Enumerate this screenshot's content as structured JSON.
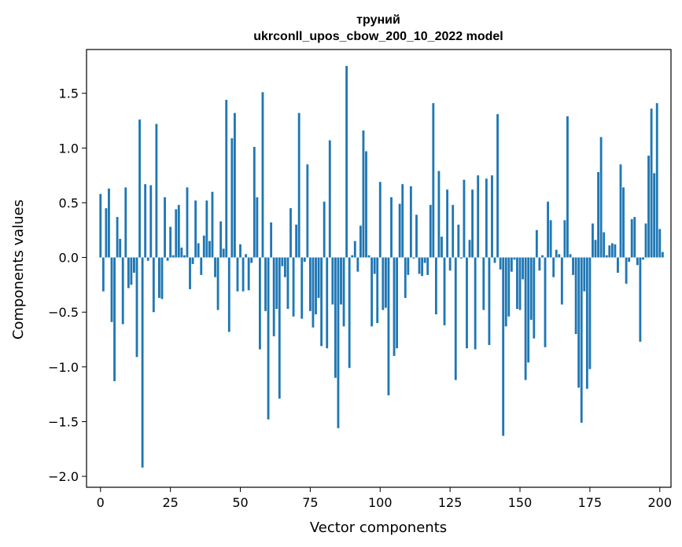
{
  "chart_data": {
    "type": "bar",
    "title_lines": [
      "труний",
      "ukrconll_upos_cbow_200_10_2022 model"
    ],
    "xlabel": "Vector components",
    "ylabel": "Components values",
    "xlim": [
      -5,
      204
    ],
    "ylim": [
      -2.1,
      1.9
    ],
    "xticks": [
      0,
      25,
      50,
      75,
      100,
      125,
      150,
      175,
      200
    ],
    "yticks": [
      -2.0,
      -1.5,
      -1.0,
      -0.5,
      0.0,
      0.5,
      1.0,
      1.5
    ],
    "ytick_labels": [
      "−2.0",
      "−1.5",
      "−1.0",
      "−0.5",
      "0.0",
      "0.5",
      "1.0",
      "1.5"
    ],
    "grid": false,
    "bar_color": "#1f77b4",
    "values": [
      0.58,
      -0.31,
      0.45,
      0.63,
      -0.59,
      -1.13,
      0.37,
      0.17,
      -0.61,
      0.64,
      -0.28,
      -0.25,
      -0.14,
      -0.91,
      1.26,
      -1.92,
      0.67,
      -0.03,
      0.66,
      -0.5,
      1.22,
      -0.37,
      -0.38,
      0.55,
      -0.03,
      0.28,
      0.02,
      0.44,
      0.48,
      0.09,
      0.02,
      0.64,
      -0.29,
      -0.06,
      0.52,
      0.13,
      -0.16,
      0.2,
      0.52,
      0.15,
      0.6,
      -0.18,
      -0.48,
      0.33,
      0.08,
      1.44,
      -0.68,
      1.09,
      1.32,
      -0.31,
      0.12,
      -0.31,
      0.03,
      -0.3,
      -0.05,
      1.01,
      0.55,
      -0.84,
      1.51,
      -0.49,
      -1.48,
      0.32,
      -0.72,
      -0.47,
      -1.29,
      -0.08,
      -0.18,
      -0.47,
      0.45,
      -0.54,
      0.3,
      1.32,
      -0.56,
      -0.04,
      0.85,
      -0.49,
      -0.64,
      -0.52,
      -0.37,
      -0.81,
      0.51,
      -0.83,
      1.07,
      -0.43,
      -1.1,
      -1.56,
      -0.43,
      -0.63,
      1.75,
      -1.01,
      0.02,
      0.15,
      -0.13,
      0.29,
      1.16,
      0.97,
      0.02,
      -0.63,
      -0.15,
      -0.6,
      0.69,
      -0.48,
      -0.46,
      -1.26,
      0.55,
      -0.9,
      -0.83,
      0.49,
      0.67,
      -0.37,
      -0.16,
      0.65,
      -0.01,
      0.39,
      -0.15,
      -0.17,
      -0.05,
      -0.16,
      0.48,
      1.41,
      -0.52,
      0.79,
      0.19,
      -0.62,
      0.62,
      -0.12,
      0.48,
      -1.12,
      0.3,
      -0.01,
      0.71,
      -0.83,
      0.16,
      0.62,
      -0.84,
      0.75,
      0.0,
      -0.48,
      0.72,
      -0.8,
      0.75,
      -0.05,
      1.31,
      -0.11,
      -1.63,
      -0.63,
      -0.54,
      -0.13,
      -0.02,
      -0.47,
      -0.48,
      -0.2,
      -1.12,
      -0.96,
      -0.57,
      -0.74,
      0.25,
      -0.12,
      0.02,
      -0.82,
      0.51,
      0.34,
      -0.18,
      0.07,
      0.03,
      -0.43,
      0.34,
      1.29,
      0.03,
      -0.16,
      -0.7,
      -1.19,
      -1.51,
      -0.31,
      -1.2,
      -1.02,
      0.31,
      0.16,
      0.78,
      1.1,
      0.23,
      0.02,
      0.11,
      0.13,
      0.12,
      -0.14,
      0.85,
      0.64,
      -0.24,
      -0.04,
      0.35,
      0.37,
      -0.07,
      -0.77,
      -0.02,
      0.31,
      0.93,
      1.36,
      0.77,
      1.41,
      0.26,
      0.05
    ]
  }
}
